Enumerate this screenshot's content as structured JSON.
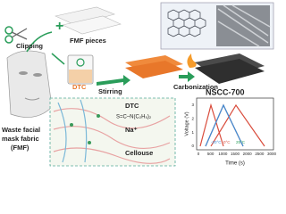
{
  "labels": {
    "clipping": "Clipping",
    "fmf_pieces": "FMF pieces",
    "dtc_beaker": "DTC",
    "stirring": "Stirring",
    "carbonization": "Carbonization",
    "product": "NSCC-700",
    "source_line1": "Waste facial",
    "source_line2": "mask fabric",
    "source_line3": "(FMF)",
    "dtc_box": "DTC",
    "formula": "S=C–N(C₂H₅)₂",
    "sodium": "Na⁺",
    "cellulose": "Cellouse"
  },
  "plot": {
    "y_label": "Voltage (V)",
    "x_label": "Time (s)",
    "xticks": [
      "0",
      "500",
      "1000",
      "1500",
      "2000",
      "2500",
      "3000"
    ],
    "yticks": [
      "0",
      "1",
      "2",
      "3"
    ],
    "series_labels": [
      "-20°C",
      "0°C",
      "25°C"
    ]
  }
}
